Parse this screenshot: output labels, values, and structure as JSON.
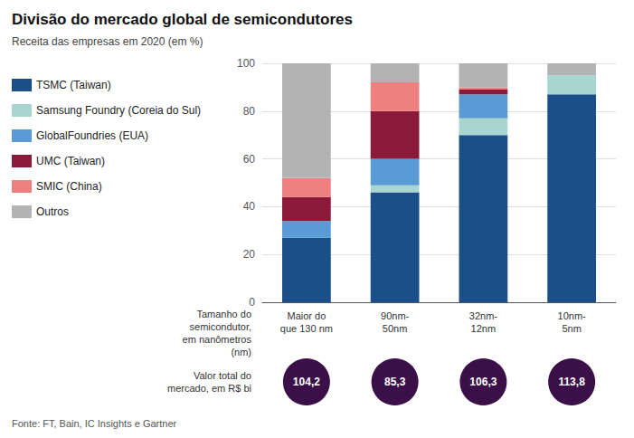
{
  "chart_data": {
    "type": "bar",
    "stacked": true,
    "title": "Divisão do mercado global de semicondutores",
    "subtitle": "Receita das empresas em 2020 (em %)",
    "source": "Fonte: FT, Bain, IC Insights e Gartner",
    "xlabel": "Tamanho do\nsemicondutor,\nem nanômetros\n(nm)",
    "categories": [
      "Maior do\nque 130 nm",
      "90nm-\n50nm",
      "32nm-\n12nm",
      "10nm-\n5nm"
    ],
    "series": [
      {
        "name": "TSMC (Taiwan)",
        "color": "#1a4f8a",
        "values": [
          27,
          46,
          70,
          87
        ]
      },
      {
        "name": "Samsung Foundry (Coreia do Sul)",
        "color": "#a8d5cf",
        "values": [
          0,
          3,
          7,
          8
        ]
      },
      {
        "name": "GlobalFoundries (EUA)",
        "color": "#5b9bd5",
        "values": [
          7,
          11,
          10,
          0
        ]
      },
      {
        "name": "UMC (Taiwan)",
        "color": "#8b1a3a",
        "values": [
          10,
          20,
          2,
          0
        ]
      },
      {
        "name": "SMIC (China)",
        "color": "#f08080",
        "values": [
          8,
          12,
          1,
          0
        ]
      },
      {
        "name": "Outros",
        "color": "#b3b3b3",
        "values": [
          48,
          8,
          10,
          5
        ]
      }
    ],
    "ylim": [
      0,
      100
    ],
    "yticks": [
      0,
      20,
      40,
      60,
      80,
      100
    ],
    "grid": true,
    "legend": "left",
    "market_values": {
      "label": "Valor total do\nmercado, em R$ bi",
      "labels": [
        "104,2",
        "85,3",
        "106,3",
        "113,8"
      ],
      "color": "#3b1048"
    }
  }
}
